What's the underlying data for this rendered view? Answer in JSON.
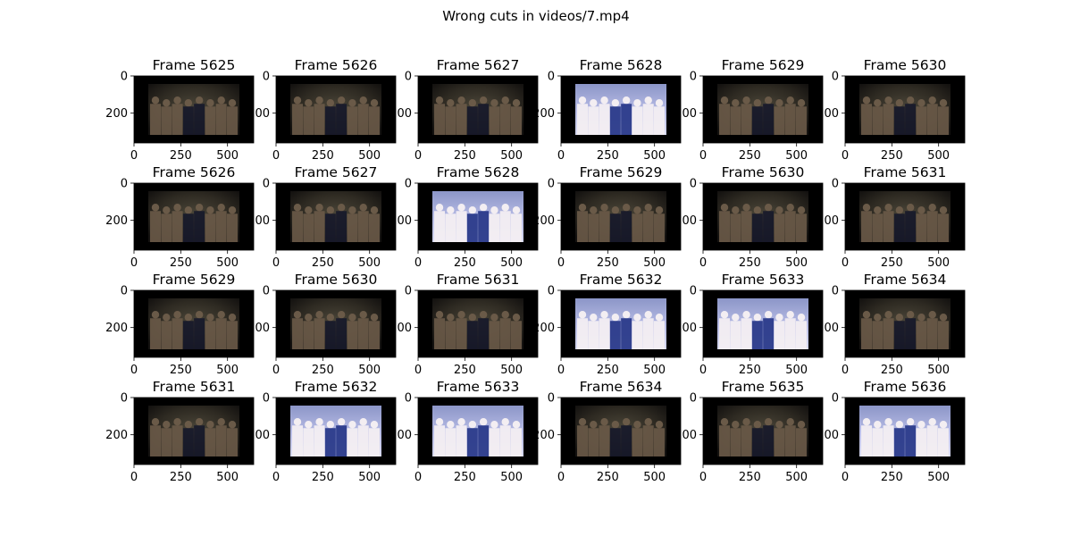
{
  "figure": {
    "title": "Wrong cuts in videos/7.mp4"
  },
  "chart_data": {
    "type": "image-grid",
    "title": "Wrong cuts in videos/7.mp4",
    "rows": 4,
    "cols": 6,
    "image_size": [
      640,
      360
    ],
    "xlim": [
      0,
      640
    ],
    "ylim": [
      360,
      0
    ],
    "x_ticks": [
      0,
      250,
      500
    ],
    "y_ticks": [
      0,
      200
    ],
    "panels": [
      {
        "title": "Frame 5625",
        "scene": "dark"
      },
      {
        "title": "Frame 5626",
        "scene": "dark"
      },
      {
        "title": "Frame 5627",
        "scene": "dark"
      },
      {
        "title": "Frame 5628",
        "scene": "bright"
      },
      {
        "title": "Frame 5629",
        "scene": "dark"
      },
      {
        "title": "Frame 5630",
        "scene": "dark"
      },
      {
        "title": "Frame 5626",
        "scene": "dark"
      },
      {
        "title": "Frame 5627",
        "scene": "dark"
      },
      {
        "title": "Frame 5628",
        "scene": "bright"
      },
      {
        "title": "Frame 5629",
        "scene": "dark"
      },
      {
        "title": "Frame 5630",
        "scene": "dark"
      },
      {
        "title": "Frame 5631",
        "scene": "dark"
      },
      {
        "title": "Frame 5629",
        "scene": "dark"
      },
      {
        "title": "Frame 5630",
        "scene": "dark"
      },
      {
        "title": "Frame 5631",
        "scene": "dark"
      },
      {
        "title": "Frame 5632",
        "scene": "bright"
      },
      {
        "title": "Frame 5633",
        "scene": "bright"
      },
      {
        "title": "Frame 5634",
        "scene": "dark"
      },
      {
        "title": "Frame 5631",
        "scene": "dark"
      },
      {
        "title": "Frame 5632",
        "scene": "bright"
      },
      {
        "title": "Frame 5633",
        "scene": "bright"
      },
      {
        "title": "Frame 5634",
        "scene": "dark"
      },
      {
        "title": "Frame 5635",
        "scene": "dark"
      },
      {
        "title": "Frame 5636",
        "scene": "bright"
      }
    ]
  }
}
